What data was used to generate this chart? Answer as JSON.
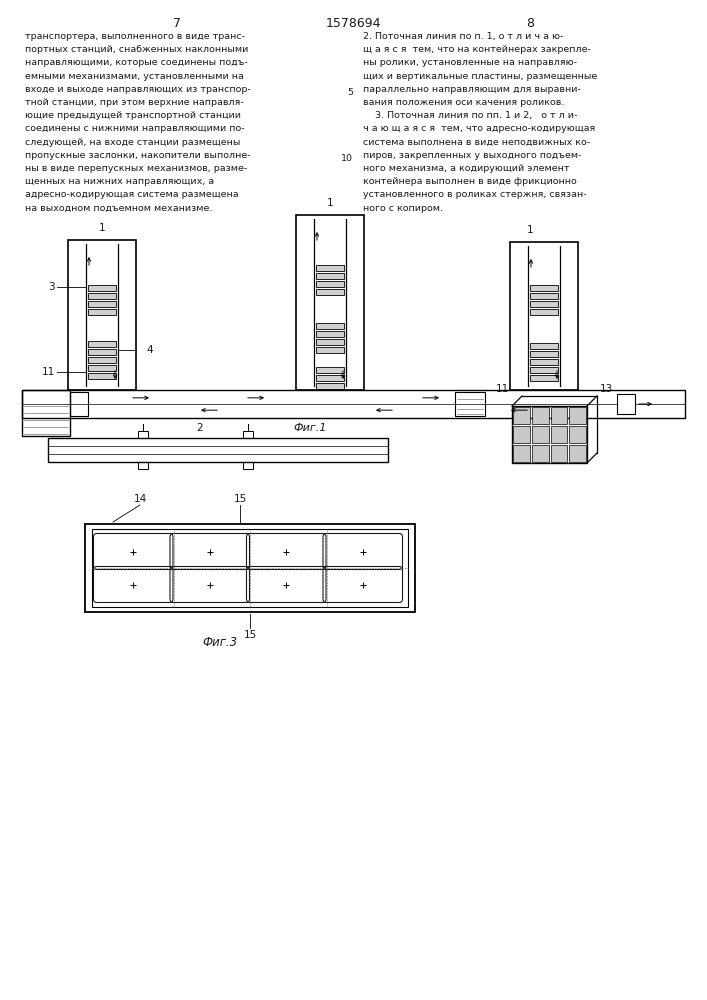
{
  "bg_color": "#ffffff",
  "line_color": "#1a1a1a",
  "page_num_left": "7",
  "page_num_center": "1578694",
  "page_num_right": "8",
  "left_text_lines": [
    "транспортера, выполненного в виде транс-",
    "портных станций, снабженных наклонными",
    "направляющими, которые соединены подъ-",
    "емными механизмами, установленными на",
    "входе и выходе направляющих из транспор-",
    "тной станции, при этом верхние направля-",
    "ющие предыдущей транспортной станции",
    "соединены с нижними направляющими по-",
    "следующей, на входе станции размещены",
    "пропускные заслонки, накопители выполне-",
    "ны в виде перепускных механизмов, разме-",
    "щенных на нижних направляющих, а",
    "адресно-кодирующая система размещена",
    "на выходном подъемном механизме."
  ],
  "right_text_lines": [
    "2. Поточная линия по п. 1, о т л и ч а ю-",
    "щ а я с я  тем, что на контейнерах закрепле-",
    "ны ролики, установленные на направляю-",
    "щих и вертикальные пластины, размещенные",
    "параллельно направляющим для выравни-",
    "вания положения оси качения роликов.",
    "    3. Поточная линия по пп. 1 и 2,   о т л и-",
    "ч а ю щ а я с я  тем, что адресно-кодирующая",
    "система выполнена в виде неподвижных ко-",
    "пиров, закрепленных у выходного подъем-",
    "ного механизма, а кодирующий элемент",
    "контейнера выполнен в виде фрикционно",
    "установленного в роликах стержня, связан-",
    "ного с копиром."
  ],
  "line_num_5_idx": 4,
  "line_num_10_idx": 9,
  "fig1_label": "Фиг.1",
  "fig3_label": "Фиг.3"
}
